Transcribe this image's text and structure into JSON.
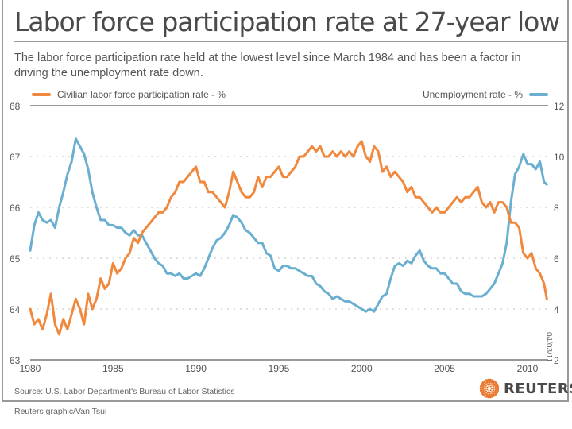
{
  "header": {
    "title": "Labor force participation rate at 27-year low",
    "subtitle": "The labor force participation rate held at the lowest level since March 1984 and has been a factor in driving the unemployment rate down."
  },
  "legend": {
    "left_label": "Civilian labor force participation rate - %",
    "right_label": "Unemployment rate - %"
  },
  "footer": {
    "source": "Source: U.S. Labor Department's Bureau of Labor Statistics",
    "credit": "Reuters graphic/Van Tsui",
    "logo_text": "REUTERS",
    "datestamp": "04/03/11"
  },
  "colors": {
    "participation": "#f0883e",
    "unemployment": "#6aaed0",
    "grid": "#cccccc",
    "axis": "#333333",
    "logo_accent": "#e8762b"
  },
  "chart_data": {
    "type": "line",
    "title": "Labor force participation rate at 27-year low",
    "xlabel": "",
    "xlim": [
      1980,
      2011.25
    ],
    "x_ticks": [
      1980,
      1985,
      1990,
      1995,
      2000,
      2005,
      2010
    ],
    "x_tick_labels": [
      "1980",
      "1985",
      "1990",
      "1995",
      "2000",
      "2005",
      "2010"
    ],
    "y_left": {
      "label": "Civilian labor force participation rate - %",
      "lim": [
        63,
        68
      ],
      "ticks": [
        63,
        64,
        65,
        66,
        67,
        68
      ]
    },
    "y_right": {
      "label": "Unemployment rate - %",
      "lim": [
        2,
        12
      ],
      "ticks": [
        2,
        4,
        6,
        8,
        10,
        12
      ]
    },
    "grid": true,
    "legend": "top",
    "series": [
      {
        "name": "Civilian labor force participation rate - %",
        "axis": "left",
        "x": [
          1980.0,
          1980.25,
          1980.5,
          1980.75,
          1981.0,
          1981.25,
          1981.5,
          1981.75,
          1982.0,
          1982.25,
          1982.5,
          1982.75,
          1983.0,
          1983.25,
          1983.5,
          1983.75,
          1984.0,
          1984.25,
          1984.5,
          1984.75,
          1985.0,
          1985.25,
          1985.5,
          1985.75,
          1986.0,
          1986.25,
          1986.5,
          1986.75,
          1987.0,
          1987.25,
          1987.5,
          1987.75,
          1988.0,
          1988.25,
          1988.5,
          1988.75,
          1989.0,
          1989.25,
          1989.5,
          1989.75,
          1990.0,
          1990.25,
          1990.5,
          1990.75,
          1991.0,
          1991.25,
          1991.5,
          1991.75,
          1992.0,
          1992.25,
          1992.5,
          1992.75,
          1993.0,
          1993.25,
          1993.5,
          1993.75,
          1994.0,
          1994.25,
          1994.5,
          1994.75,
          1995.0,
          1995.25,
          1995.5,
          1995.75,
          1996.0,
          1996.25,
          1996.5,
          1996.75,
          1997.0,
          1997.25,
          1997.5,
          1997.75,
          1998.0,
          1998.25,
          1998.5,
          1998.75,
          1999.0,
          1999.25,
          1999.5,
          1999.75,
          2000.0,
          2000.25,
          2000.5,
          2000.75,
          2001.0,
          2001.25,
          2001.5,
          2001.75,
          2002.0,
          2002.25,
          2002.5,
          2002.75,
          2003.0,
          2003.25,
          2003.5,
          2003.75,
          2004.0,
          2004.25,
          2004.5,
          2004.75,
          2005.0,
          2005.25,
          2005.5,
          2005.75,
          2006.0,
          2006.25,
          2006.5,
          2006.75,
          2007.0,
          2007.25,
          2007.5,
          2007.75,
          2008.0,
          2008.25,
          2008.5,
          2008.75,
          2009.0,
          2009.25,
          2009.5,
          2009.75,
          2010.0,
          2010.25,
          2010.5,
          2010.75,
          2011.0,
          2011.17
        ],
        "values": [
          64.0,
          63.7,
          63.8,
          63.6,
          63.9,
          64.3,
          63.7,
          63.5,
          63.8,
          63.6,
          63.9,
          64.2,
          64.0,
          63.7,
          64.3,
          64.0,
          64.2,
          64.6,
          64.4,
          64.5,
          64.9,
          64.7,
          64.8,
          65.0,
          65.1,
          65.4,
          65.3,
          65.5,
          65.6,
          65.7,
          65.8,
          65.9,
          65.9,
          66.0,
          66.2,
          66.3,
          66.5,
          66.5,
          66.6,
          66.7,
          66.8,
          66.5,
          66.5,
          66.3,
          66.3,
          66.2,
          66.1,
          66.0,
          66.3,
          66.7,
          66.5,
          66.3,
          66.2,
          66.2,
          66.3,
          66.6,
          66.4,
          66.6,
          66.6,
          66.7,
          66.8,
          66.6,
          66.6,
          66.7,
          66.8,
          67.0,
          67.0,
          67.1,
          67.2,
          67.1,
          67.2,
          67.0,
          67.0,
          67.1,
          67.0,
          67.1,
          67.0,
          67.1,
          67.0,
          67.2,
          67.3,
          67.0,
          66.9,
          67.2,
          67.1,
          66.7,
          66.8,
          66.6,
          66.7,
          66.6,
          66.5,
          66.3,
          66.4,
          66.2,
          66.2,
          66.1,
          66.0,
          65.9,
          66.0,
          65.9,
          65.9,
          66.0,
          66.1,
          66.2,
          66.1,
          66.2,
          66.2,
          66.3,
          66.4,
          66.1,
          66.0,
          66.1,
          65.9,
          66.1,
          66.1,
          66.0,
          65.7,
          65.7,
          65.6,
          65.1,
          65.0,
          65.1,
          64.8,
          64.7,
          64.5,
          64.2
        ]
      },
      {
        "name": "Unemployment rate - %",
        "axis": "right",
        "x": [
          1980.0,
          1980.25,
          1980.5,
          1980.75,
          1981.0,
          1981.25,
          1981.5,
          1981.75,
          1982.0,
          1982.25,
          1982.5,
          1982.75,
          1983.0,
          1983.25,
          1983.5,
          1983.75,
          1984.0,
          1984.25,
          1984.5,
          1984.75,
          1985.0,
          1985.25,
          1985.5,
          1985.75,
          1986.0,
          1986.25,
          1986.5,
          1986.75,
          1987.0,
          1987.25,
          1987.5,
          1987.75,
          1988.0,
          1988.25,
          1988.5,
          1988.75,
          1989.0,
          1989.25,
          1989.5,
          1989.75,
          1990.0,
          1990.25,
          1990.5,
          1990.75,
          1991.0,
          1991.25,
          1991.5,
          1991.75,
          1992.0,
          1992.25,
          1992.5,
          1992.75,
          1993.0,
          1993.25,
          1993.5,
          1993.75,
          1994.0,
          1994.25,
          1994.5,
          1994.75,
          1995.0,
          1995.25,
          1995.5,
          1995.75,
          1996.0,
          1996.25,
          1996.5,
          1996.75,
          1997.0,
          1997.25,
          1997.5,
          1997.75,
          1998.0,
          1998.25,
          1998.5,
          1998.75,
          1999.0,
          1999.25,
          1999.5,
          1999.75,
          2000.0,
          2000.25,
          2000.5,
          2000.75,
          2001.0,
          2001.25,
          2001.5,
          2001.75,
          2002.0,
          2002.25,
          2002.5,
          2002.75,
          2003.0,
          2003.25,
          2003.5,
          2003.75,
          2004.0,
          2004.25,
          2004.5,
          2004.75,
          2005.0,
          2005.25,
          2005.5,
          2005.75,
          2006.0,
          2006.25,
          2006.5,
          2006.75,
          2007.0,
          2007.25,
          2007.5,
          2007.75,
          2008.0,
          2008.25,
          2008.5,
          2008.75,
          2009.0,
          2009.25,
          2009.5,
          2009.75,
          2010.0,
          2010.25,
          2010.5,
          2010.75,
          2011.0,
          2011.17
        ],
        "values": [
          6.3,
          7.3,
          7.8,
          7.5,
          7.4,
          7.5,
          7.2,
          8.0,
          8.6,
          9.3,
          9.8,
          10.7,
          10.4,
          10.1,
          9.5,
          8.6,
          8.0,
          7.5,
          7.5,
          7.3,
          7.3,
          7.2,
          7.2,
          7.0,
          6.9,
          7.1,
          6.9,
          6.9,
          6.6,
          6.3,
          6.0,
          5.8,
          5.7,
          5.4,
          5.4,
          5.3,
          5.4,
          5.2,
          5.2,
          5.3,
          5.4,
          5.3,
          5.6,
          6.0,
          6.4,
          6.7,
          6.8,
          7.0,
          7.3,
          7.7,
          7.6,
          7.4,
          7.1,
          7.0,
          6.8,
          6.6,
          6.6,
          6.2,
          6.1,
          5.6,
          5.5,
          5.7,
          5.7,
          5.6,
          5.6,
          5.5,
          5.4,
          5.3,
          5.3,
          5.0,
          4.9,
          4.7,
          4.6,
          4.4,
          4.5,
          4.4,
          4.3,
          4.3,
          4.2,
          4.1,
          4.0,
          3.9,
          4.0,
          3.9,
          4.2,
          4.5,
          4.6,
          5.2,
          5.7,
          5.8,
          5.7,
          5.9,
          5.8,
          6.1,
          6.3,
          5.9,
          5.7,
          5.6,
          5.6,
          5.4,
          5.4,
          5.2,
          5.0,
          5.0,
          4.7,
          4.6,
          4.6,
          4.5,
          4.5,
          4.5,
          4.6,
          4.8,
          5.0,
          5.4,
          5.8,
          6.6,
          8.2,
          9.3,
          9.6,
          10.1,
          9.7,
          9.7,
          9.5,
          9.8,
          9.0,
          8.9
        ]
      }
    ]
  }
}
